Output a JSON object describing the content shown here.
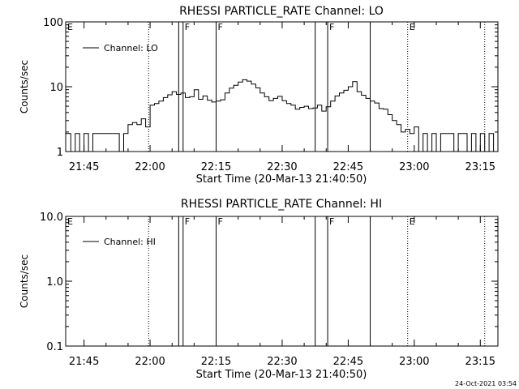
{
  "footer_timestamp": "24-Oct-2021 03:54",
  "chart_data": [
    {
      "type": "line",
      "title": "RHESSI PARTICLE_RATE Channel: LO",
      "xlabel": "Start Time (20-Mar-13 21:40:50)",
      "ylabel": "Counts/sec",
      "yscale": "log",
      "ylim": [
        1,
        100
      ],
      "xlim": [
        "21:40:50",
        "23:19:00"
      ],
      "xticks": [
        "21:45",
        "22:00",
        "22:15",
        "22:30",
        "22:45",
        "23:00",
        "23:15"
      ],
      "yticks": [
        "1",
        "10",
        "100"
      ],
      "legend": {
        "label": "Channel: LO",
        "position": "top-left"
      },
      "vertical_lines": [
        {
          "time": "22:06:30",
          "label": "",
          "style": "solid"
        },
        {
          "time": "22:07:30",
          "label": "F",
          "style": "solid"
        },
        {
          "time": "22:15:00",
          "label": "F",
          "style": "solid"
        },
        {
          "time": "22:37:30",
          "label": "",
          "style": "solid"
        },
        {
          "time": "22:40:20",
          "label": "F",
          "style": "solid"
        },
        {
          "time": "22:50:00",
          "label": "",
          "style": "solid"
        },
        {
          "time": "21:59:40",
          "label": "",
          "style": "dotted"
        },
        {
          "time": "22:58:30",
          "label": "E",
          "style": "dotted"
        },
        {
          "time": "23:16:00",
          "label": "",
          "style": "dotted"
        }
      ],
      "corner_label": "E",
      "series": [
        {
          "x": [
            "21:40:50",
            "21:42:00",
            "21:43:00",
            "21:44:00",
            "21:45:00",
            "21:46:00",
            "21:47:00",
            "21:48:00",
            "21:49:00",
            "21:50:00",
            "21:51:00",
            "21:52:00",
            "21:53:00",
            "21:54:00",
            "21:55:00",
            "21:56:00",
            "21:57:00",
            "21:58:00",
            "21:59:00",
            "22:00:00",
            "22:01:00",
            "22:02:00",
            "22:03:00",
            "22:04:00",
            "22:05:00",
            "22:06:00",
            "22:07:00",
            "22:08:00",
            "22:09:00",
            "22:10:00",
            "22:11:00",
            "22:12:00",
            "22:13:00",
            "22:14:00",
            "22:15:00",
            "22:16:00",
            "22:17:00",
            "22:18:00",
            "22:19:00",
            "22:20:00",
            "22:21:00",
            "22:22:00",
            "22:23:00",
            "22:24:00",
            "22:25:00",
            "22:26:00",
            "22:27:00",
            "22:28:00",
            "22:29:00",
            "22:30:00",
            "22:31:00",
            "22:32:00",
            "22:33:00",
            "22:34:00",
            "22:35:00",
            "22:36:00",
            "22:37:00",
            "22:38:00",
            "22:39:00",
            "22:40:00",
            "22:41:00",
            "22:42:00",
            "22:43:00",
            "22:44:00",
            "22:45:00",
            "22:46:00",
            "22:47:00",
            "22:48:00",
            "22:49:00",
            "22:50:00",
            "22:51:00",
            "22:52:00",
            "22:53:00",
            "22:54:00",
            "22:55:00",
            "22:56:00",
            "22:57:00",
            "22:58:00",
            "22:59:00",
            "23:00:00",
            "23:01:00",
            "23:02:00",
            "23:03:00",
            "23:04:00",
            "23:05:00",
            "23:06:00",
            "23:07:00",
            "23:08:00",
            "23:09:00",
            "23:10:00",
            "23:11:00",
            "23:12:00",
            "23:13:00",
            "23:14:00",
            "23:15:00",
            "23:16:00",
            "23:17:00",
            "23:18:00"
          ],
          "y": [
            1.9,
            1.0,
            1.9,
            1.0,
            1.9,
            1.0,
            1.9,
            1.9,
            1.9,
            1.9,
            1.9,
            1.9,
            1.0,
            1.9,
            2.6,
            2.8,
            2.6,
            3.2,
            2.4,
            5.2,
            5.5,
            6.0,
            6.8,
            7.5,
            8.4,
            7.6,
            8.0,
            6.8,
            7.0,
            9.0,
            6.4,
            7.2,
            6.2,
            5.8,
            6.0,
            6.3,
            8.0,
            9.5,
            10.5,
            11.8,
            12.8,
            12.2,
            11.0,
            9.6,
            8.0,
            7.0,
            6.1,
            6.6,
            7.1,
            6.1,
            5.5,
            5.2,
            4.5,
            4.8,
            5.0,
            4.6,
            4.7,
            5.2,
            4.2,
            4.9,
            6.0,
            7.2,
            8.0,
            8.8,
            10.0,
            12.0,
            8.4,
            7.4,
            6.6,
            6.0,
            5.6,
            4.6,
            4.5,
            3.7,
            3.0,
            2.6,
            2.0,
            2.2,
            1.9,
            2.4,
            1.0,
            1.9,
            1.0,
            1.9,
            1.0,
            1.9,
            1.9,
            1.9,
            1.0,
            1.9,
            1.9,
            1.0,
            1.9,
            1.0,
            1.9,
            1.0,
            1.9,
            1.0
          ]
        }
      ]
    },
    {
      "type": "line",
      "title": "RHESSI PARTICLE_RATE Channel: HI",
      "xlabel": "Start Time (20-Mar-13 21:40:50)",
      "ylabel": "Counts/sec",
      "yscale": "log",
      "ylim": [
        0.1,
        10
      ],
      "xlim": [
        "21:40:50",
        "23:19:00"
      ],
      "xticks": [
        "21:45",
        "22:00",
        "22:15",
        "22:30",
        "22:45",
        "23:00",
        "23:15"
      ],
      "yticks": [
        "0.1",
        "1.0",
        "10.0"
      ],
      "legend": {
        "label": "Channel: HI",
        "position": "top-left"
      },
      "vertical_lines": [
        {
          "time": "22:06:30",
          "label": "",
          "style": "solid"
        },
        {
          "time": "22:07:30",
          "label": "F",
          "style": "solid"
        },
        {
          "time": "22:15:00",
          "label": "F",
          "style": "solid"
        },
        {
          "time": "22:37:30",
          "label": "",
          "style": "solid"
        },
        {
          "time": "22:40:20",
          "label": "F",
          "style": "solid"
        },
        {
          "time": "22:50:00",
          "label": "",
          "style": "solid"
        },
        {
          "time": "21:59:40",
          "label": "",
          "style": "dotted"
        },
        {
          "time": "22:58:30",
          "label": "E",
          "style": "dotted"
        },
        {
          "time": "23:16:00",
          "label": "",
          "style": "dotted"
        }
      ],
      "corner_label": "E",
      "series": [
        {
          "x": [],
          "y": []
        }
      ]
    }
  ]
}
